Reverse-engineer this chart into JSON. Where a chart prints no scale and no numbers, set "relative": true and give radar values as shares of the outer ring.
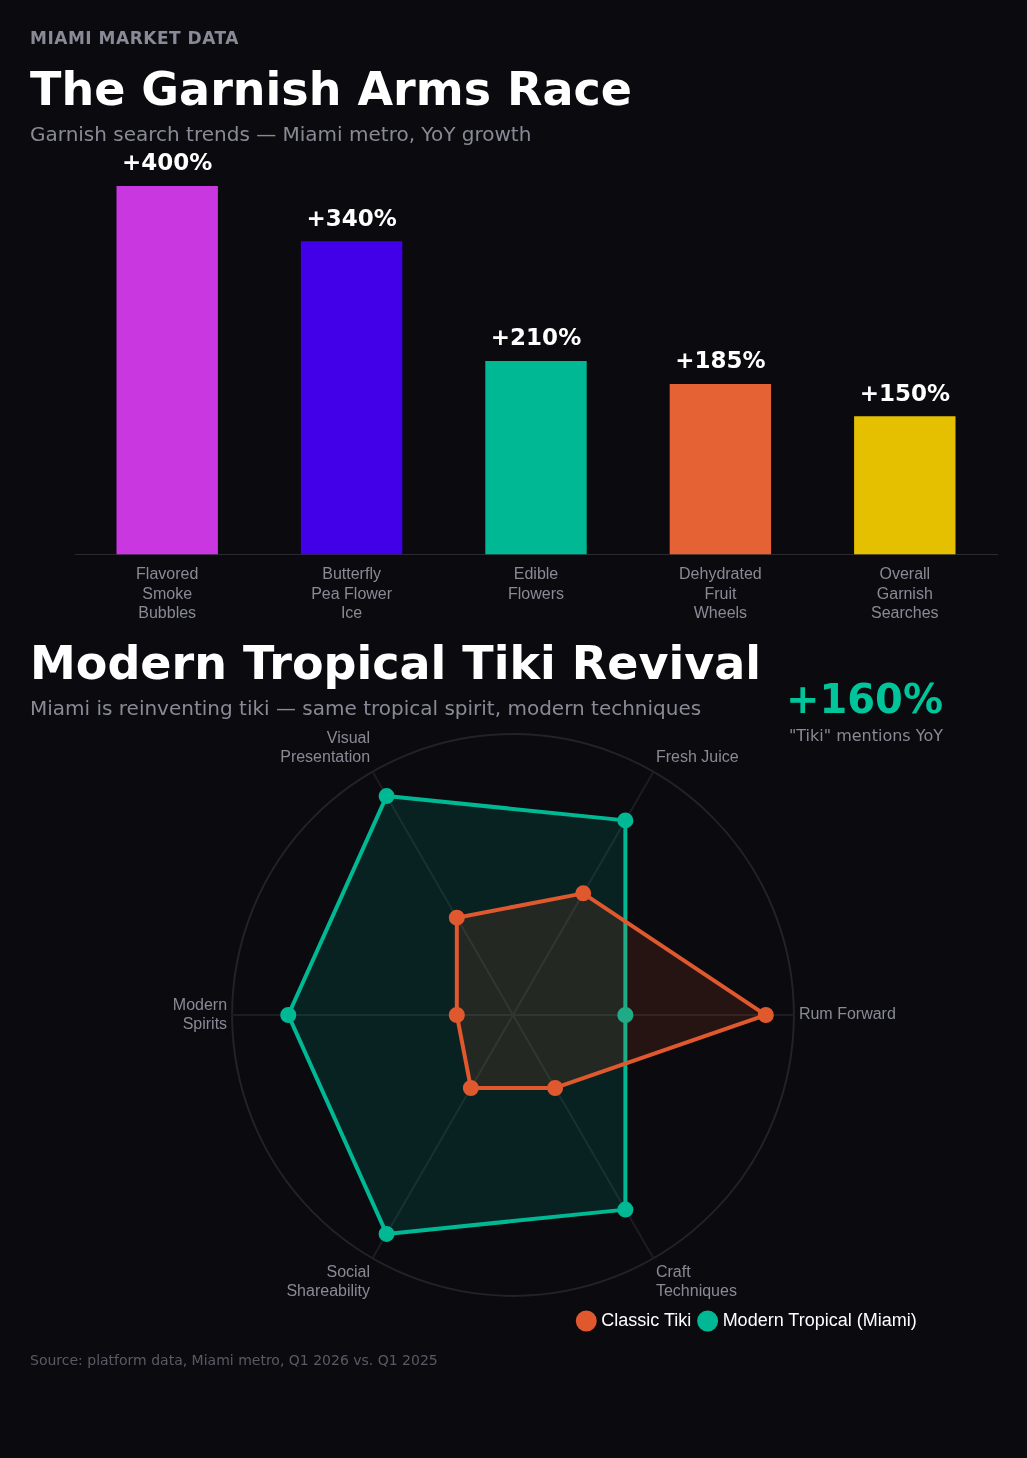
{
  "chart_data": [
    {
      "type": "bar",
      "title": "The Garnish Arms Race",
      "subtitle": "Garnish search trends — Miami metro, YoY growth",
      "annotations": [
        "MIAMI MARKET DATA"
      ],
      "categories": [
        "Flavored Smoke Bubbles",
        "Butterfly Pea Flower Ice",
        "Edible Flowers",
        "Dehydrated Fruit Wheels",
        "Overall Garnish Searches"
      ],
      "values": [
        400,
        340,
        210,
        185,
        150
      ],
      "colors": [
        "#c837e0",
        "#4200e8",
        "#00b894",
        "#e46233",
        "#e5c000"
      ],
      "value_labels": [
        "+400%",
        "+340%",
        "+210%",
        "+185%",
        "+150%"
      ]
    },
    {
      "type": "radar",
      "title": "Modern Tropical Tiki Revival",
      "subtitle": "Miami is reinventing tiki — same tropical spirit, modern techniques",
      "annotations": [
        "+160%",
        "\"Tiki\" mentions YoY",
        "Source: platform data, Miami metro, Q1 2026 vs. Q1 2025"
      ],
      "categories": [
        "Fresh Juice",
        "Rum Forward",
        "Craft Techniques",
        "Social Shareability",
        "Modern Spirits",
        "Visual Presentation"
      ],
      "relative": true,
      "legend": "bottom right",
      "marker": "circle",
      "grid": true,
      "series": [
        {
          "name": "Classic Tiki",
          "color": "#e0582e",
          "values": [
            0.5,
            0.9,
            0.3,
            0.3,
            0.2,
            0.4
          ]
        },
        {
          "name": "Modern Tropical (Miami)",
          "color": "#00b894",
          "values": [
            0.8,
            0.4,
            0.8,
            0.9,
            0.8,
            0.9
          ]
        }
      ]
    }
  ]
}
